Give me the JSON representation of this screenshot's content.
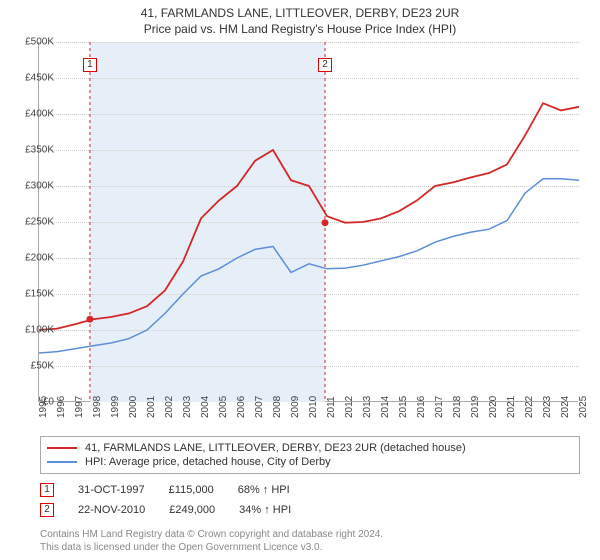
{
  "title": "41, FARMLANDS LANE, LITTLEOVER, DERBY, DE23 2UR",
  "subtitle": "Price paid vs. HM Land Registry's House Price Index (HPI)",
  "chart": {
    "type": "line",
    "y": {
      "min": 0,
      "max": 500000,
      "step": 50000,
      "ticks": [
        0,
        50000,
        100000,
        150000,
        200000,
        250000,
        300000,
        350000,
        400000,
        450000,
        500000
      ],
      "labels": [
        "£0",
        "£50K",
        "£100K",
        "£150K",
        "£200K",
        "£250K",
        "£300K",
        "£350K",
        "£400K",
        "£450K",
        "£500K"
      ]
    },
    "x": {
      "min": 1995,
      "max": 2025,
      "ticks": [
        1995,
        1996,
        1997,
        1998,
        1999,
        2000,
        2001,
        2002,
        2003,
        2004,
        2005,
        2006,
        2007,
        2008,
        2009,
        2010,
        2011,
        2012,
        2013,
        2014,
        2015,
        2016,
        2017,
        2018,
        2019,
        2020,
        2021,
        2022,
        2023,
        2024,
        2025
      ],
      "labels": [
        "1995",
        "1996",
        "1997",
        "1998",
        "1999",
        "2000",
        "2001",
        "2002",
        "2003",
        "2004",
        "2005",
        "2006",
        "2007",
        "2008",
        "2009",
        "2010",
        "2011",
        "2012",
        "2013",
        "2014",
        "2015",
        "2016",
        "2017",
        "2018",
        "2019",
        "2020",
        "2021",
        "2022",
        "2023",
        "2024",
        "2025"
      ]
    },
    "shaded_band": {
      "x_start": 1997.83,
      "x_end": 2010.89,
      "fill": "#e6eef8"
    },
    "grid_color": "#cccccc",
    "axis_color": "#aaaaaa",
    "background": "#ffffff",
    "label_fontsize": 10,
    "series": [
      {
        "name": "41, FARMLANDS LANE, LITTLEOVER, DERBY, DE23 2UR (detached house)",
        "color": "#d62728",
        "points_y_by_year": [
          100,
          102,
          108,
          115,
          118,
          123,
          133,
          155,
          195,
          255,
          280,
          300,
          335,
          350,
          308,
          300,
          258,
          249,
          250,
          255,
          265,
          280,
          300,
          305,
          312,
          318,
          330,
          370,
          415,
          405,
          410
        ],
        "markers": [
          {
            "id": "1",
            "year": 1997.83,
            "value": 115000
          },
          {
            "id": "2",
            "year": 2010.89,
            "value": 249000
          }
        ]
      },
      {
        "name": "HPI: Average price, detached house, City of Derby",
        "color": "#5b8fd6",
        "points_y_by_year": [
          68,
          70,
          74,
          78,
          82,
          88,
          100,
          123,
          150,
          175,
          185,
          200,
          212,
          216,
          180,
          192,
          185,
          186,
          190,
          196,
          202,
          210,
          222,
          230,
          236,
          240,
          252,
          290,
          310,
          310,
          308
        ]
      }
    ]
  },
  "legend": {
    "row1": "41, FARMLANDS LANE, LITTLEOVER, DERBY, DE23 2UR (detached house)",
    "row2": "HPI: Average price, detached house, City of Derby",
    "color1": "#d62728",
    "color2": "#5b8fd6"
  },
  "events": [
    {
      "id": "1",
      "date": "31-OCT-1997",
      "price": "£115,000",
      "pct": "68% ↑ HPI"
    },
    {
      "id": "2",
      "date": "22-NOV-2010",
      "price": "£249,000",
      "pct": "34% ↑ HPI"
    }
  ],
  "footer": {
    "l1": "Contains HM Land Registry data © Crown copyright and database right 2024.",
    "l2": "This data is licensed under the Open Government Licence v3.0."
  }
}
